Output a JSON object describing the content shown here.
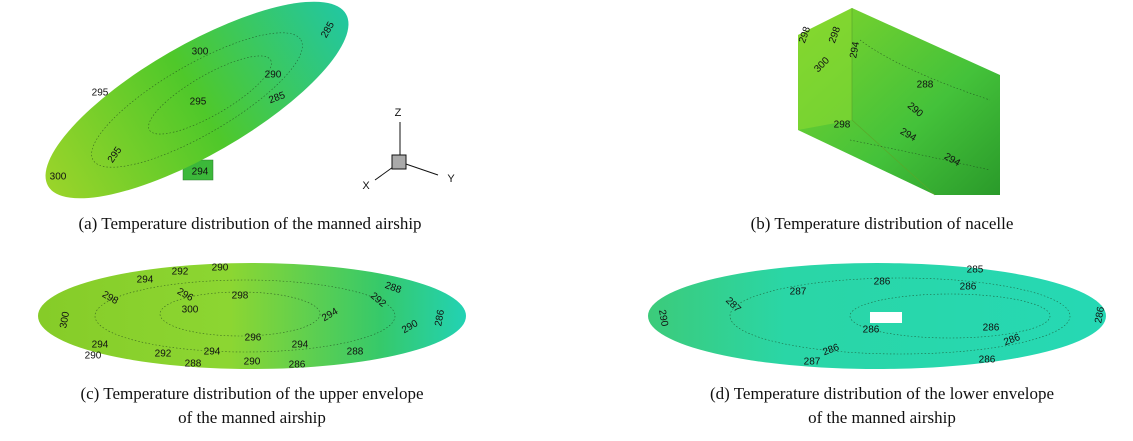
{
  "panels": [
    {
      "caption": "(a) Temperature distribution of the manned airship",
      "contour_labels": [
        300,
        285,
        290,
        295,
        295,
        285,
        295,
        294,
        300
      ]
    },
    {
      "caption": "(b) Temperature distribution of nacelle",
      "contour_labels": [
        298,
        298,
        294,
        300,
        288,
        290,
        298,
        294,
        294
      ]
    },
    {
      "caption_lines": [
        "(c) Temperature distribution of the upper envelope",
        "of the manned airship"
      ],
      "contour_labels": [
        290,
        294,
        292,
        298,
        296,
        298,
        300,
        288,
        292,
        294,
        300,
        290,
        286,
        294,
        296,
        294,
        290,
        292,
        294,
        288,
        290,
        286,
        288
      ]
    },
    {
      "caption_lines": [
        "(d) Temperature distribution of the lower envelope",
        "of the manned airship"
      ],
      "contour_labels": [
        285,
        286,
        286,
        287,
        287,
        290,
        286,
        286,
        286,
        286,
        286,
        287,
        286
      ]
    }
  ],
  "axes": {
    "z": "Z",
    "x": "X",
    "y": "Y"
  }
}
